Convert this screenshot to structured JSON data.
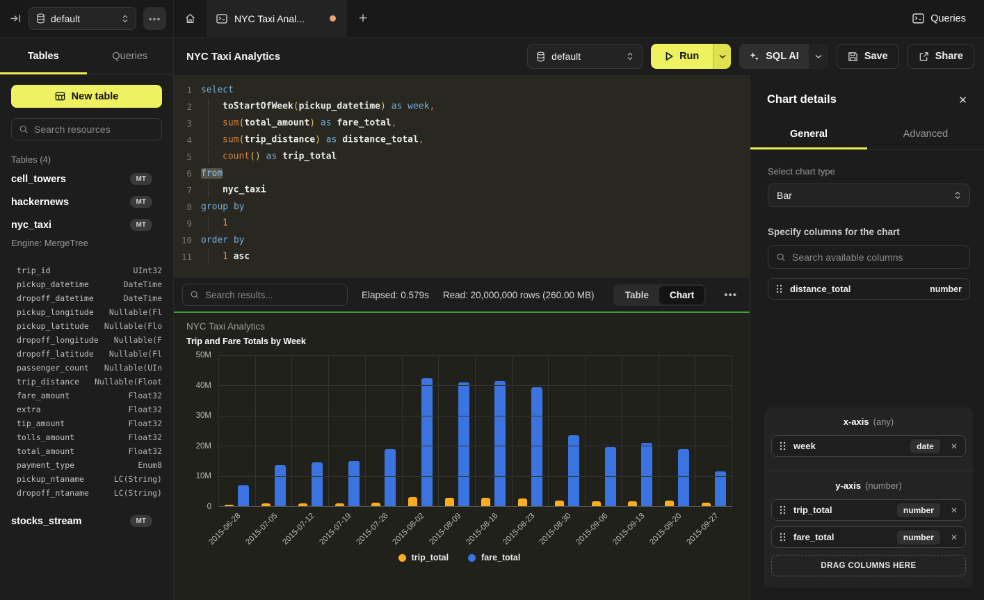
{
  "topbar": {
    "database_selector": "default",
    "tab_title": "NYC Taxi Anal...",
    "queries_label": "Queries"
  },
  "sidebar": {
    "tabs": [
      {
        "label": "Tables",
        "active": true
      },
      {
        "label": "Queries",
        "active": false
      }
    ],
    "new_table_label": "New table",
    "search_placeholder": "Search resources",
    "section_label": "Tables (4)",
    "tables": [
      {
        "name": "cell_towers",
        "badge": "MT"
      },
      {
        "name": "hackernews",
        "badge": "MT"
      },
      {
        "name": "nyc_taxi",
        "badge": "MT",
        "engine": "Engine: MergeTree",
        "columns": [
          [
            "trip_id",
            "UInt32"
          ],
          [
            "pickup_datetime",
            "DateTime"
          ],
          [
            "dropoff_datetime",
            "DateTime"
          ],
          [
            "pickup_longitude",
            "Nullable(Fl"
          ],
          [
            "pickup_latitude",
            "Nullable(Flo"
          ],
          [
            "dropoff_longitude",
            "Nullable(F"
          ],
          [
            "dropoff_latitude",
            "Nullable(Fl"
          ],
          [
            "passenger_count",
            "Nullable(UIn"
          ],
          [
            "trip_distance",
            "Nullable(Float"
          ],
          [
            "fare_amount",
            "Float32"
          ],
          [
            "extra",
            "Float32"
          ],
          [
            "tip_amount",
            "Float32"
          ],
          [
            "tolls_amount",
            "Float32"
          ],
          [
            "total_amount",
            "Float32"
          ],
          [
            "payment_type",
            "Enum8"
          ],
          [
            "pickup_ntaname",
            "LC(String)"
          ],
          [
            "dropoff_ntaname",
            "LC(String)"
          ]
        ]
      },
      {
        "name": "stocks_stream",
        "badge": "MT"
      }
    ]
  },
  "header": {
    "title": "NYC Taxi Analytics"
  },
  "toolbar": {
    "database_selector": "default",
    "run_label": "Run",
    "sql_ai_label": "SQL AI",
    "save_label": "Save",
    "share_label": "Share"
  },
  "editor": {
    "lines": [
      {
        "n": "1",
        "seg": [
          [
            "select",
            "kw"
          ]
        ]
      },
      {
        "n": "2",
        "seg": [
          [
            "",
            "ind"
          ],
          [
            "toStartOfWeek",
            "id"
          ],
          [
            "(",
            "par"
          ],
          [
            "pickup_datetime",
            "id"
          ],
          [
            ")",
            "par"
          ],
          [
            " ",
            "pl"
          ],
          [
            "as",
            "kw"
          ],
          [
            " ",
            "pl"
          ],
          [
            "week",
            "kw"
          ],
          [
            ",",
            "com"
          ]
        ]
      },
      {
        "n": "3",
        "seg": [
          [
            "",
            "ind"
          ],
          [
            "sum",
            "fn"
          ],
          [
            "(",
            "par"
          ],
          [
            "total_amount",
            "id"
          ],
          [
            ")",
            "par"
          ],
          [
            " ",
            "pl"
          ],
          [
            "as",
            "kw"
          ],
          [
            " ",
            "pl"
          ],
          [
            "fare_total",
            "id"
          ],
          [
            ",",
            "com"
          ]
        ]
      },
      {
        "n": "4",
        "seg": [
          [
            "",
            "ind"
          ],
          [
            "sum",
            "fn"
          ],
          [
            "(",
            "par"
          ],
          [
            "trip_distance",
            "id"
          ],
          [
            ")",
            "par"
          ],
          [
            " ",
            "pl"
          ],
          [
            "as",
            "kw"
          ],
          [
            " ",
            "pl"
          ],
          [
            "distance_total",
            "id"
          ],
          [
            ",",
            "com"
          ]
        ]
      },
      {
        "n": "5",
        "seg": [
          [
            "",
            "ind"
          ],
          [
            "count",
            "fn"
          ],
          [
            "()",
            "par"
          ],
          [
            " ",
            "pl"
          ],
          [
            "as",
            "kw"
          ],
          [
            " ",
            "pl"
          ],
          [
            "trip_total",
            "id"
          ]
        ]
      },
      {
        "n": "6",
        "seg": [
          [
            "from",
            "kwsel"
          ]
        ]
      },
      {
        "n": "7",
        "seg": [
          [
            "",
            "ind"
          ],
          [
            "nyc_taxi",
            "id"
          ]
        ]
      },
      {
        "n": "8",
        "seg": [
          [
            "group by",
            "kw"
          ]
        ]
      },
      {
        "n": "9",
        "seg": [
          [
            "",
            "ind"
          ],
          [
            "1",
            "num"
          ]
        ]
      },
      {
        "n": "10",
        "seg": [
          [
            "order by",
            "kw"
          ]
        ]
      },
      {
        "n": "11",
        "seg": [
          [
            "",
            "ind"
          ],
          [
            "1",
            "num"
          ],
          [
            " ",
            "pl"
          ],
          [
            "asc",
            "id"
          ]
        ]
      }
    ]
  },
  "results_bar": {
    "search_placeholder": "Search results...",
    "elapsed": "Elapsed: 0.579s",
    "read": "Read: 20,000,000 rows (260.00 MB)",
    "view_tabs": [
      {
        "label": "Table",
        "active": false
      },
      {
        "label": "Chart",
        "active": true
      }
    ]
  },
  "chart_data": {
    "type": "bar",
    "title": "NYC Taxi Analytics",
    "subtitle": "Trip and Fare Totals by Week",
    "categories": [
      "2015-06-28",
      "2015-07-05",
      "2015-07-12",
      "2015-07-19",
      "2015-07-26",
      "2015-08-02",
      "2015-08-09",
      "2015-08-16",
      "2015-08-23",
      "2015-08-30",
      "2015-09-06",
      "2015-09-13",
      "2015-09-20",
      "2015-09-27"
    ],
    "series": [
      {
        "name": "trip_total",
        "color": "#ffad1f",
        "values_millions": [
          0.5,
          1.0,
          1.0,
          1.0,
          1.2,
          2.9,
          2.7,
          2.8,
          2.6,
          1.9,
          1.7,
          1.7,
          1.8,
          1.1
        ]
      },
      {
        "name": "fare_total",
        "color": "#3b74e0",
        "values_millions": [
          7,
          13.5,
          14.5,
          15,
          19,
          42.5,
          41,
          41.5,
          39.5,
          23.5,
          19.5,
          21,
          19,
          11.5
        ]
      }
    ],
    "y_ticks": [
      "50M",
      "40M",
      "30M",
      "20M",
      "10M",
      "0"
    ],
    "ylim_millions": [
      0,
      50
    ],
    "grid": true,
    "legend_position": "bottom"
  },
  "chart_details": {
    "title": "Chart details",
    "tabs": [
      {
        "label": "General",
        "active": true
      },
      {
        "label": "Advanced",
        "active": false
      }
    ],
    "chart_type_label": "Select chart type",
    "chart_type_value": "Bar",
    "columns_label": "Specify columns for the chart",
    "columns_search_placeholder": "Search available columns",
    "available_columns": [
      {
        "name": "distance_total",
        "type": "number"
      }
    ],
    "x_axis": {
      "label": "x-axis",
      "hint": "(any)",
      "items": [
        {
          "name": "week",
          "type": "date"
        }
      ]
    },
    "y_axis": {
      "label": "y-axis",
      "hint": "(number)",
      "items": [
        {
          "name": "trip_total",
          "type": "number"
        },
        {
          "name": "fare_total",
          "type": "number"
        }
      ]
    },
    "drop_zone_label": "DRAG COLUMNS HERE"
  },
  "colors": {
    "accent_yellow": "#eef160",
    "chart_top_border_green": "#3f9f3c",
    "bar_yellow": "#ffad1f",
    "bar_blue": "#3b74e0",
    "unsaved_dot_orange": "#f0a079"
  }
}
